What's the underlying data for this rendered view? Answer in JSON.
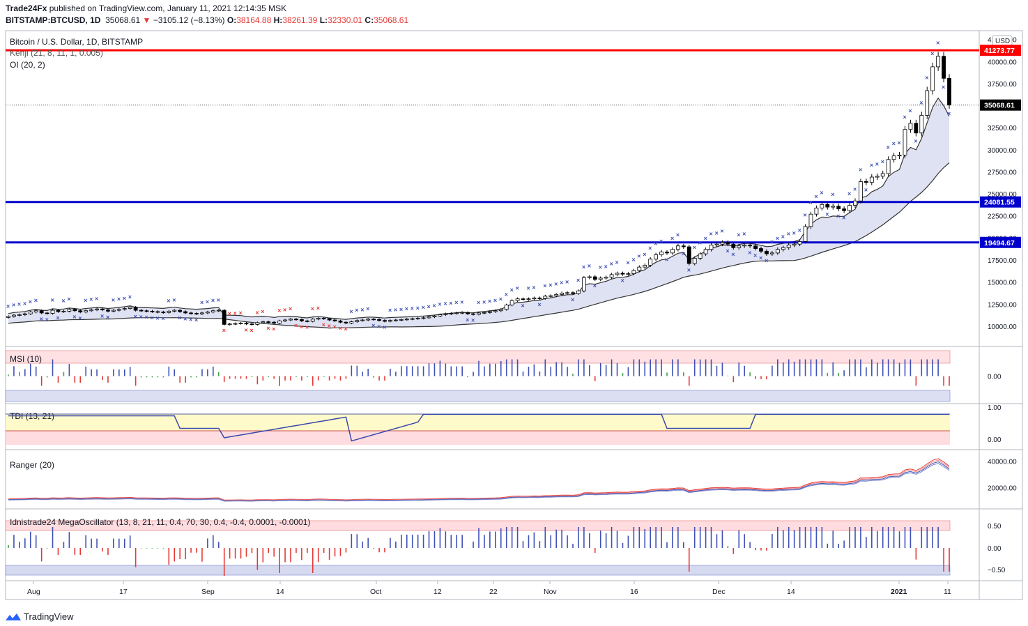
{
  "header": {
    "publisher": "Trade24Fx",
    "published_text": "published on TradingView.com, January 11, 2021 12:14:35 MSK",
    "symbol": "BITSTAMP:BTCUSD, 1D",
    "last": "35068.61",
    "change": "−3105.12 (−8.13%)",
    "o_label": "O:",
    "o_val": "38164.88",
    "h_label": "H:",
    "h_val": "38261.39",
    "l_label": "L:",
    "l_val": "32330.01",
    "c_label": "C:",
    "c_val": "35068.61"
  },
  "legend": {
    "title": "Bitcoin / U.S. Dollar, 1D, BITSTAMP",
    "kenji": "Kenji (21, 8, 11, 1, 0.005)",
    "oi": "OI (20, 2)",
    "msi": "MSI (10)",
    "tdi": "TDI (13, 21)",
    "ranger": "Ranger (20)",
    "mega": "Idnistrade24 MegaOscillator (13, 8, 21, 11, 0.4, 70, 30, 0.4, -0.4, 0.0001, -0.0001)"
  },
  "currency": "USD",
  "price_badges": {
    "resistance_red": "41273.77",
    "last": "35068.61",
    "support1": "24081.55",
    "support2": "19494.67"
  },
  "brand": "TradingView",
  "colors": {
    "up": "#ffffff",
    "down": "#000000",
    "red_line": "#ff0000",
    "blue_line": "#0000cc",
    "marker_blue": "#3f51b5",
    "marker_red": "#e53935",
    "band_fill": "#c5cae9"
  },
  "chart_data": [
    {
      "type": "candlestick",
      "title": "Bitcoin / U.S. Dollar, 1D, BITSTAMP",
      "y_ticks": [
        "42500.00",
        "40000.00",
        "37500.00",
        "35000.00",
        "32500.00",
        "30000.00",
        "27500.00",
        "25000.00",
        "22500.00",
        "20000.00",
        "17500.00",
        "15000.00",
        "12500.00",
        "10000.00"
      ],
      "ylim": [
        7700,
        43500
      ],
      "x_ticks": [
        "Aug",
        "17",
        "Sep",
        "14",
        "Oct",
        "12",
        "22",
        "Nov",
        "16",
        "Dec",
        "14",
        "2021",
        "11"
      ],
      "horizontal_levels": [
        {
          "value": 41273.77,
          "color": "red"
        },
        {
          "value": 24081.55,
          "color": "blue"
        },
        {
          "value": 19494.67,
          "color": "blue"
        }
      ],
      "last_price": 35068.61,
      "close_series": [
        11100,
        11250,
        11300,
        11400,
        11600,
        11750,
        11500,
        11450,
        11800,
        11650,
        11700,
        11900,
        11750,
        11600,
        11750,
        11850,
        11950,
        11850,
        11700,
        11800,
        11900,
        12000,
        12150,
        11800,
        11750,
        11700,
        11650,
        11600,
        11550,
        11700,
        11800,
        11650,
        11500,
        11450,
        11400,
        11500,
        11600,
        11750,
        11800,
        10200,
        10250,
        10300,
        10350,
        10250,
        10200,
        10400,
        10500,
        10450,
        10350,
        10600,
        10700,
        10800,
        10750,
        10600,
        10550,
        10800,
        10900,
        10850,
        10700,
        10600,
        10450,
        10350,
        10500,
        10650,
        10700,
        10800,
        10750,
        10650,
        10550,
        10650,
        10700,
        10750,
        10800,
        10850,
        10900,
        10950,
        11050,
        11150,
        11300,
        11400,
        11450,
        11500,
        11550,
        11400,
        11350,
        11500,
        11550,
        11650,
        11750,
        11900,
        12400,
        12900,
        13100,
        13050,
        13100,
        13200,
        13150,
        13400,
        13450,
        13600,
        13750,
        13800,
        13700,
        14000,
        15500,
        15600,
        15300,
        15450,
        15550,
        15850,
        16000,
        15900,
        15950,
        16300,
        16700,
        16900,
        17600,
        18100,
        18400,
        18300,
        18700,
        19100,
        19000,
        17100,
        17700,
        18200,
        18700,
        19200,
        19300,
        19500,
        19300,
        18900,
        19100,
        19200,
        19100,
        18800,
        18500,
        18200,
        18300,
        18700,
        18900,
        19200,
        19300,
        19600,
        21300,
        22700,
        23400,
        23800,
        23500,
        23600,
        23300,
        23100,
        23700,
        24200,
        26400,
        26300,
        26900,
        27000,
        27300,
        28900,
        29300,
        29400,
        32300,
        33000,
        31900,
        33900,
        36700,
        39400,
        40600,
        38100,
        35068.61
      ]
    },
    {
      "type": "bar",
      "title": "MSI (10)",
      "y_ticks": [
        "0.00"
      ]
    },
    {
      "type": "line",
      "title": "TDI (13, 21)",
      "y_ticks": [
        "1.00",
        "0.00"
      ]
    },
    {
      "type": "line",
      "title": "Ranger (20)",
      "y_ticks": [
        "40000.00",
        "20000.00"
      ]
    },
    {
      "type": "bar",
      "title": "Idnistrade24 MegaOscillator (13, 8, 21, 11, 0.4, 70, 30, 0.4, -0.4, 0.0001, -0.0001)",
      "y_ticks": [
        "0.50",
        "0.00",
        "−0.50"
      ]
    }
  ]
}
